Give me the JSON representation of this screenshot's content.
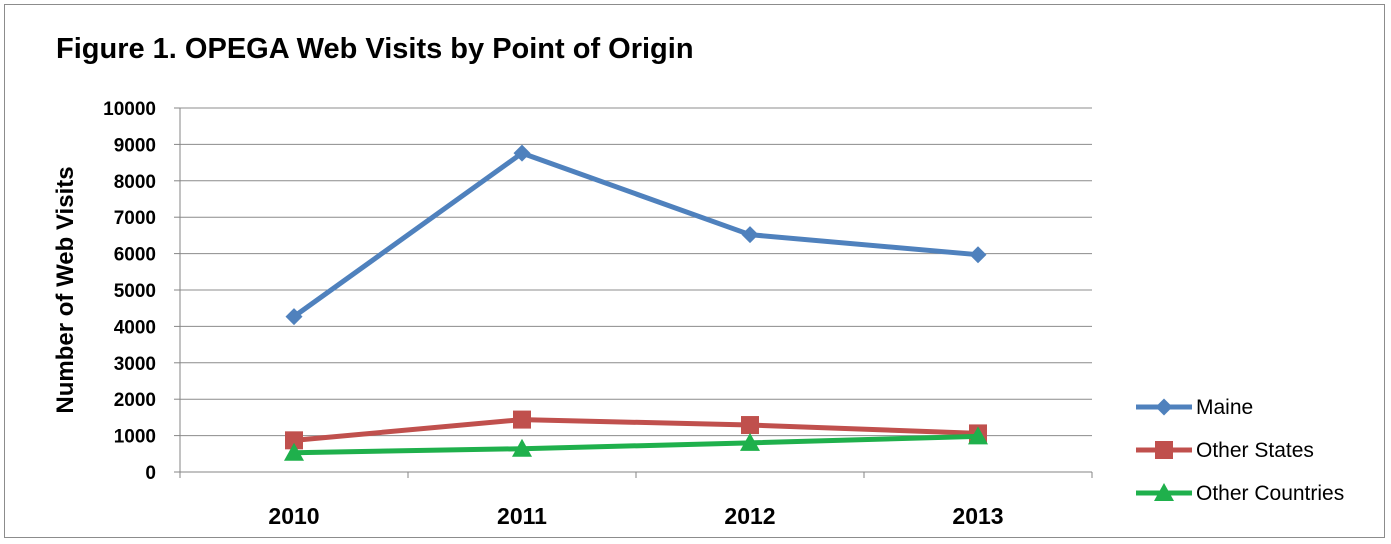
{
  "chart_data": {
    "type": "line",
    "title": "Figure 1. OPEGA Web Visits by Point of Origin",
    "xlabel": "",
    "ylabel": "Number of Web Visits",
    "categories": [
      "2010",
      "2011",
      "2012",
      "2013"
    ],
    "ylim": [
      0,
      10000
    ],
    "yticks": [
      0,
      1000,
      2000,
      3000,
      4000,
      5000,
      6000,
      7000,
      8000,
      9000,
      10000
    ],
    "grid": true,
    "legend_position": "right",
    "series": [
      {
        "name": "Maine",
        "values": [
          4270,
          8760,
          6520,
          5970
        ],
        "color": "#4f81bd",
        "marker": "diamond"
      },
      {
        "name": "Other States",
        "values": [
          870,
          1440,
          1290,
          1060
        ],
        "color": "#c0504d",
        "marker": "square"
      },
      {
        "name": "Other Countries",
        "values": [
          530,
          640,
          800,
          980
        ],
        "color": "#1fb04c",
        "marker": "triangle"
      }
    ]
  }
}
